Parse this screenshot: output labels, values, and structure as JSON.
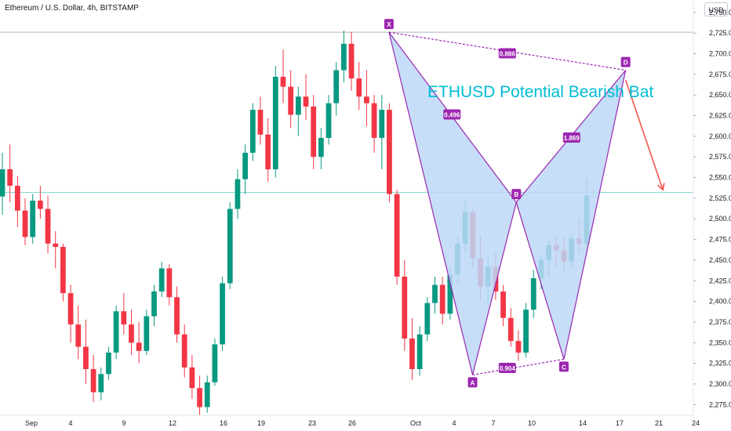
{
  "header": {
    "symbol_title": "Ethereum / U.S. Dollar, 4h, BITSTAMP",
    "currency_button": "USD"
  },
  "colors": {
    "up": "#089981",
    "down": "#f23645",
    "pattern_fill": "#bcd8f7",
    "pattern_line": "#9c27b0",
    "title": "#00bcd4",
    "arrow": "#f4554a",
    "hline_top": "#b2b5be",
    "hline_cur": "#7fd9d3"
  },
  "chart_data": {
    "type": "candlestick",
    "title": "ETHUSD Potential Bearish Bat",
    "ylim": [
      2262,
      2765
    ],
    "y_ticks": [
      "2,275.0",
      "2,300.0",
      "2,325.0",
      "2,350.0",
      "2,375.0",
      "2,400.0",
      "2,425.0",
      "2,450.0",
      "2,475.0",
      "2,500.0",
      "2,525.0",
      "2,550.0",
      "2,575.0",
      "2,600.0",
      "2,625.0",
      "2,650.0",
      "2,675.0",
      "2,700.0",
      "2,725.0",
      "2,750.0"
    ],
    "x_ticks": [
      "Sep",
      "4",
      "9",
      "12",
      "16",
      "19",
      "23",
      "26",
      "Oct",
      "4",
      "7",
      "10",
      "14",
      "17",
      "21",
      "24"
    ],
    "horizontal_lines": [
      2726,
      2532
    ],
    "harmonic_pattern": {
      "points": [
        {
          "label": "X",
          "t": 27.8,
          "price": 2726
        },
        {
          "label": "A",
          "t": 34.3,
          "price": 2311
        },
        {
          "label": "B",
          "t": 37.7,
          "price": 2520
        },
        {
          "label": "C",
          "t": 41.4,
          "price": 2330
        },
        {
          "label": "D",
          "t": 46.2,
          "price": 2680
        }
      ],
      "ratios": [
        {
          "label": "0.886",
          "t": 37.0,
          "price": 2700
        },
        {
          "label": "0.496",
          "t": 32.7,
          "price": 2626
        },
        {
          "label": "1.869",
          "t": 42.0,
          "price": 2598
        },
        {
          "label": "0.904",
          "t": 37.0,
          "price": 2319
        }
      ]
    },
    "projection": {
      "from": {
        "t": 46.2,
        "price": 2668
      },
      "to": {
        "t": 49.1,
        "price": 2535
      }
    },
    "candles_ohlc": [
      [
        2527,
        2580,
        2505,
        2560
      ],
      [
        2560,
        2590,
        2520,
        2540
      ],
      [
        2540,
        2552,
        2490,
        2510
      ],
      [
        2510,
        2525,
        2468,
        2478
      ],
      [
        2478,
        2530,
        2470,
        2522
      ],
      [
        2522,
        2540,
        2500,
        2512
      ],
      [
        2512,
        2528,
        2458,
        2470
      ],
      [
        2470,
        2485,
        2440,
        2466
      ],
      [
        2466,
        2470,
        2400,
        2410
      ],
      [
        2410,
        2420,
        2350,
        2372
      ],
      [
        2372,
        2395,
        2330,
        2345
      ],
      [
        2345,
        2378,
        2300,
        2318
      ],
      [
        2318,
        2335,
        2278,
        2290
      ],
      [
        2290,
        2320,
        2280,
        2312
      ],
      [
        2312,
        2345,
        2305,
        2338
      ],
      [
        2338,
        2395,
        2330,
        2388
      ],
      [
        2388,
        2410,
        2360,
        2372
      ],
      [
        2372,
        2390,
        2335,
        2350
      ],
      [
        2350,
        2375,
        2325,
        2340
      ],
      [
        2340,
        2390,
        2335,
        2382
      ],
      [
        2382,
        2420,
        2370,
        2412
      ],
      [
        2412,
        2448,
        2405,
        2440
      ],
      [
        2440,
        2445,
        2395,
        2405
      ],
      [
        2405,
        2418,
        2350,
        2360
      ],
      [
        2360,
        2372,
        2308,
        2320
      ],
      [
        2320,
        2335,
        2282,
        2295
      ],
      [
        2295,
        2310,
        2262,
        2272
      ],
      [
        2272,
        2310,
        2265,
        2302
      ],
      [
        2302,
        2355,
        2298,
        2348
      ],
      [
        2348,
        2430,
        2340,
        2422
      ],
      [
        2422,
        2520,
        2415,
        2512
      ],
      [
        2512,
        2560,
        2500,
        2548
      ],
      [
        2548,
        2590,
        2530,
        2580
      ],
      [
        2580,
        2640,
        2570,
        2632
      ],
      [
        2632,
        2648,
        2590,
        2602
      ],
      [
        2602,
        2622,
        2545,
        2560
      ],
      [
        2560,
        2685,
        2550,
        2672
      ],
      [
        2672,
        2705,
        2640,
        2660
      ],
      [
        2660,
        2680,
        2610,
        2626
      ],
      [
        2626,
        2660,
        2600,
        2648
      ],
      [
        2648,
        2675,
        2620,
        2636
      ],
      [
        2636,
        2650,
        2560,
        2575
      ],
      [
        2575,
        2610,
        2560,
        2598
      ],
      [
        2598,
        2650,
        2590,
        2640
      ],
      [
        2640,
        2690,
        2625,
        2680
      ],
      [
        2680,
        2728,
        2665,
        2712
      ],
      [
        2712,
        2726,
        2655,
        2670
      ],
      [
        2670,
        2690,
        2632,
        2648
      ],
      [
        2648,
        2680,
        2612,
        2640
      ],
      [
        2640,
        2650,
        2580,
        2598
      ],
      [
        2598,
        2650,
        2560,
        2632
      ],
      [
        2632,
        2640,
        2520,
        2530
      ],
      [
        2530,
        2535,
        2420,
        2430
      ],
      [
        2430,
        2450,
        2340,
        2355
      ],
      [
        2355,
        2380,
        2305,
        2318
      ],
      [
        2318,
        2370,
        2310,
        2360
      ],
      [
        2360,
        2405,
        2352,
        2398
      ],
      [
        2398,
        2430,
        2385,
        2420
      ],
      [
        2420,
        2430,
        2372,
        2385
      ],
      [
        2385,
        2440,
        2378,
        2432
      ],
      [
        2432,
        2480,
        2420,
        2470
      ],
      [
        2470,
        2522,
        2460,
        2508
      ],
      [
        2508,
        2512,
        2440,
        2452
      ],
      [
        2452,
        2480,
        2400,
        2418
      ],
      [
        2418,
        2455,
        2395,
        2442
      ],
      [
        2442,
        2460,
        2402,
        2412
      ],
      [
        2412,
        2420,
        2370,
        2380
      ],
      [
        2380,
        2392,
        2345,
        2352
      ],
      [
        2352,
        2365,
        2328,
        2338
      ],
      [
        2338,
        2398,
        2332,
        2390
      ],
      [
        2390,
        2438,
        2380,
        2428
      ],
      [
        2428,
        2458,
        2415,
        2450
      ],
      [
        2450,
        2476,
        2430,
        2468
      ],
      [
        2468,
        2480,
        2440,
        2462
      ],
      [
        2462,
        2478,
        2438,
        2448
      ],
      [
        2448,
        2482,
        2440,
        2476
      ],
      [
        2476,
        2500,
        2458,
        2470
      ],
      [
        2470,
        2548,
        2462,
        2528
      ]
    ]
  }
}
